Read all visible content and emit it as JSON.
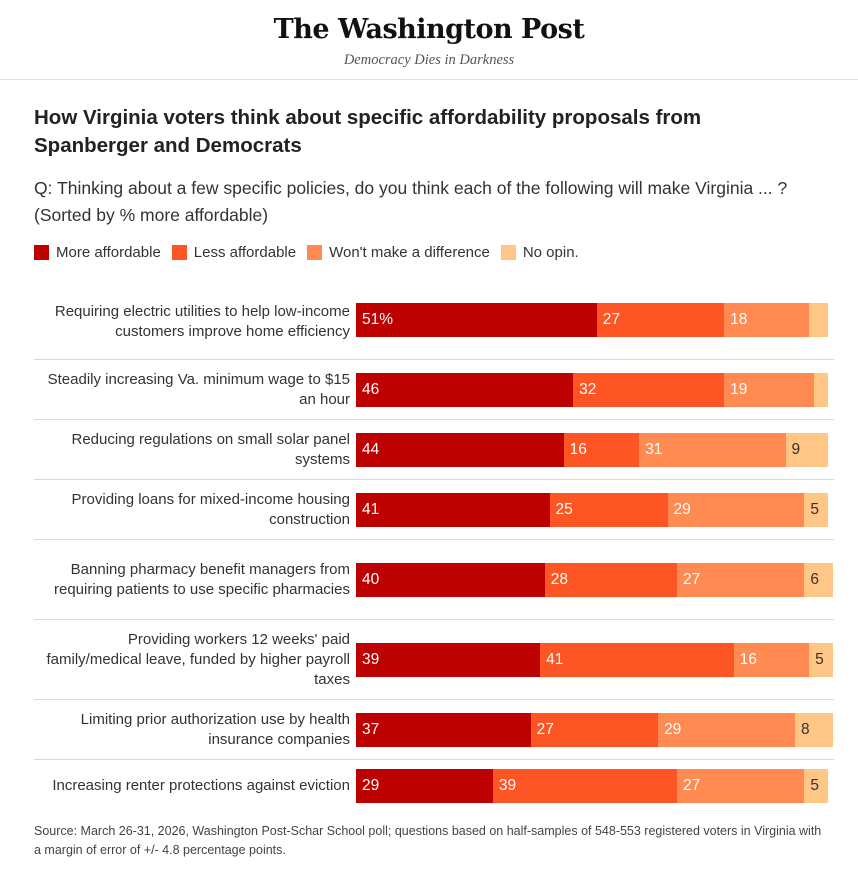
{
  "masthead": {
    "logo": "The Washington Post",
    "tagline": "Democracy Dies in Darkness"
  },
  "colors": {
    "more_affordable": "#bd0000",
    "less_affordable": "#fd5523",
    "no_difference": "#ff8a52",
    "no_opinion": "#ffc685"
  },
  "chart_data": {
    "type": "bar",
    "orientation": "horizontal-stacked",
    "title": "How Virginia voters think about specific affordability proposals from Spanberger and Democrats",
    "subtitle": "Q: Thinking about a few specific policies, do you think each of the following will make Virginia ... ? (Sorted by % more affordable)",
    "legend": [
      "More affordable",
      "Less affordable",
      "Won't make a difference",
      "No opin."
    ],
    "legend_position": "top-left",
    "xlim": [
      0,
      100
    ],
    "unit": "%",
    "categories": [
      "Requiring electric utilities to help low-income customers improve home efficiency",
      "Steadily increasing Va. minimum wage to $15 an hour",
      "Reducing regulations on small solar panel systems",
      "Providing loans for mixed-income housing construction",
      "Banning pharmacy benefit managers from requiring patients to use specific pharmacies",
      "Providing workers 12 weeks' paid family/medical leave, funded by higher payroll taxes",
      "Limiting prior authorization use by health insurance companies",
      "Increasing renter protections against eviction"
    ],
    "series": [
      {
        "name": "More affordable",
        "values": [
          51,
          46,
          44,
          41,
          40,
          39,
          37,
          29
        ],
        "labels": [
          "51%",
          "46",
          "44",
          "41",
          "40",
          "39",
          "37",
          "29"
        ]
      },
      {
        "name": "Less affordable",
        "values": [
          27,
          32,
          16,
          25,
          28,
          41,
          27,
          39
        ],
        "labels": [
          "27",
          "32",
          "16",
          "25",
          "28",
          "41",
          "27",
          "39"
        ]
      },
      {
        "name": "Won't make a difference",
        "values": [
          18,
          19,
          31,
          29,
          27,
          16,
          29,
          27
        ],
        "labels": [
          "18",
          "19",
          "31",
          "29",
          "27",
          "16",
          "29",
          "27"
        ]
      },
      {
        "name": "No opin.",
        "values": [
          4,
          3,
          9,
          5,
          6,
          5,
          8,
          5
        ],
        "labels": [
          "",
          "",
          "9",
          "5",
          "6",
          "5",
          "8",
          "5"
        ]
      }
    ],
    "source": "Source: March 26-31, 2026, Washington Post-Schar School poll; questions based on half-samples of 548-553 registered voters in Virginia with a margin of error of +/- 4.8 percentage points."
  }
}
